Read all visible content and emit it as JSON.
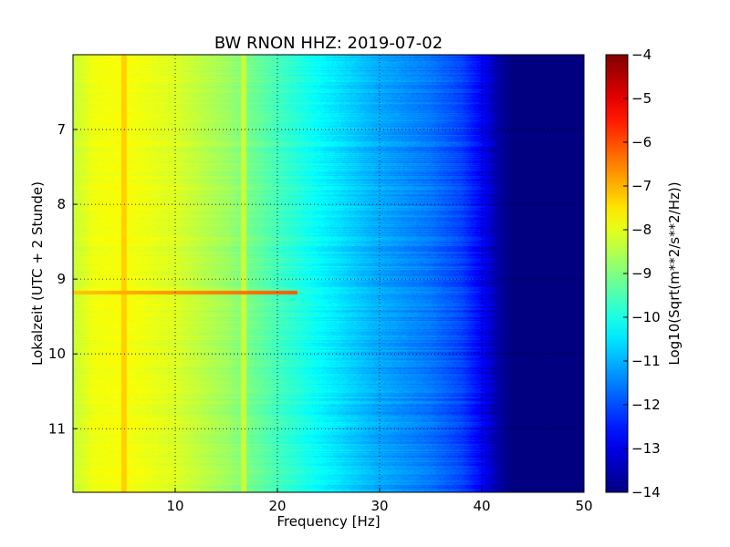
{
  "chart_data": {
    "type": "heatmap",
    "title": "BW RNON HHZ: 2019-07-02",
    "xlabel": "Frequency [Hz]",
    "ylabel": "Lokalzeit (UTC + 2 Stunde)",
    "xlim": [
      0,
      50
    ],
    "ylim": [
      11.85,
      6
    ],
    "x_ticks": [
      10,
      20,
      30,
      40,
      50
    ],
    "y_ticks": [
      7,
      8,
      9,
      10,
      11
    ],
    "grid": true,
    "colormap": "jet",
    "colorbar": {
      "label": "Log10(Sqrt(m**2/s**2/Hz))",
      "range": [
        -14,
        -4
      ],
      "ticks": [
        -4,
        -5,
        -6,
        -7,
        -8,
        -9,
        -10,
        -11,
        -12,
        -13,
        -14
      ]
    },
    "profile_by_frequency": [
      {
        "f": 0,
        "v": -8.3
      },
      {
        "f": 2,
        "v": -7.9
      },
      {
        "f": 5,
        "v": -7.8
      },
      {
        "f": 10,
        "v": -8.1
      },
      {
        "f": 15,
        "v": -8.7
      },
      {
        "f": 20,
        "v": -9.6
      },
      {
        "f": 25,
        "v": -10.4
      },
      {
        "f": 30,
        "v": -11.1
      },
      {
        "f": 35,
        "v": -11.6
      },
      {
        "f": 38,
        "v": -12.1
      },
      {
        "f": 40,
        "v": -12.8
      },
      {
        "f": 41.5,
        "v": -13.6
      },
      {
        "f": 43,
        "v": -14
      },
      {
        "f": 50,
        "v": -14
      }
    ],
    "features": [
      {
        "type": "line_frequency",
        "f": 5,
        "v": -7.3
      },
      {
        "type": "line_frequency",
        "f": 16.7,
        "v": -8.3
      },
      {
        "type": "burst_time",
        "t": 9.18,
        "v": -7.2
      }
    ]
  }
}
